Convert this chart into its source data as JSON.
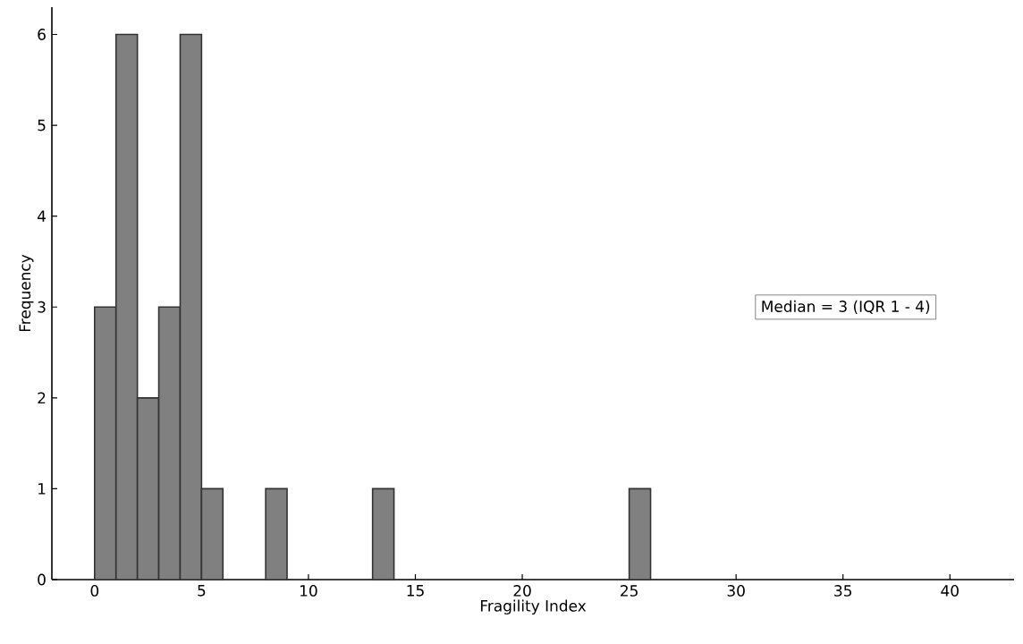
{
  "chart_data": {
    "type": "histogram",
    "xlabel": "Fragility Index",
    "ylabel": "Frequency",
    "bins": [
      0,
      1,
      2,
      3,
      4,
      5,
      6,
      7,
      8,
      9,
      10,
      11,
      12,
      13,
      14,
      15,
      16,
      17,
      18,
      19,
      20,
      21,
      22,
      23,
      24,
      25,
      26
    ],
    "values": [
      3,
      6,
      2,
      3,
      6,
      1,
      0,
      0,
      1,
      0,
      0,
      0,
      0,
      1,
      0,
      0,
      0,
      0,
      0,
      0,
      0,
      0,
      0,
      0,
      0,
      1
    ],
    "color": "#808080",
    "xlim": [
      -2,
      43
    ],
    "ylim": [
      0,
      6.3
    ],
    "xticks": [
      0,
      5,
      10,
      15,
      20,
      25,
      30,
      35,
      40
    ],
    "yticks": [
      0,
      1,
      2,
      3,
      4,
      5,
      6
    ],
    "annotations": [
      "Median = 3 (IQR 1 - 4)"
    ],
    "grid": false
  }
}
